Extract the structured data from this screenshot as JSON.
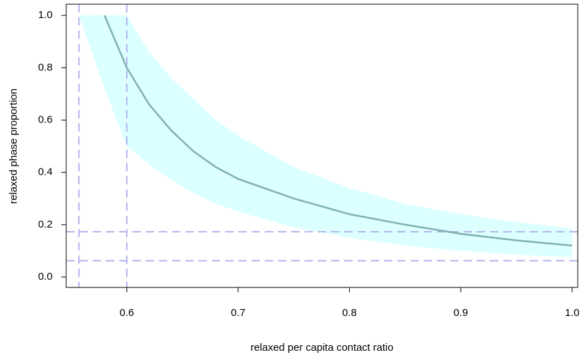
{
  "chart_data": {
    "type": "line",
    "x_label": "relaxed per capita contact ratio",
    "y_label": "relaxed phase proportion",
    "xlim": [
      0.5456,
      1.005
    ],
    "ylim": [
      -0.04,
      1.043
    ],
    "xticks": [
      0.6,
      0.7,
      0.8,
      0.9,
      {
        "value": 1.0,
        "label": "1.0"
      }
    ],
    "yticks": [
      {
        "value": 0,
        "label": "0.0"
      },
      0.2,
      0.4,
      0.6,
      0.8,
      {
        "value": 1.0,
        "label": "1.0"
      }
    ],
    "band": {
      "color": "#dcffff",
      "x": [
        0.557,
        0.58,
        0.6,
        0.62,
        0.64,
        0.66,
        0.68,
        0.7,
        0.75,
        0.8,
        0.85,
        0.9,
        0.95,
        1.0
      ],
      "upper": [
        1.0,
        1.0,
        1.0,
        0.86,
        0.76,
        0.68,
        0.6,
        0.54,
        0.42,
        0.34,
        0.28,
        0.24,
        0.21,
        0.185
      ],
      "lower": [
        1.0,
        0.72,
        0.5,
        0.43,
        0.37,
        0.32,
        0.28,
        0.25,
        0.19,
        0.15,
        0.12,
        0.1,
        0.085,
        0.075
      ]
    },
    "x": [
      0.58,
      0.6,
      0.62,
      0.64,
      0.66,
      0.68,
      0.7,
      0.75,
      0.8,
      0.85,
      0.9,
      0.95,
      1.0
    ],
    "series": [
      {
        "color": "#7fb0b0",
        "values": [
          1.0,
          0.8,
          0.66,
          0.56,
          0.48,
          0.42,
          0.375,
          0.3,
          0.24,
          0.2,
          0.165,
          0.14,
          0.12
        ]
      }
    ],
    "vlines": [
      0.557,
      0.6
    ],
    "hlines": [
      0.173,
      0.062
    ],
    "ref_color": "#b4b4ee"
  }
}
